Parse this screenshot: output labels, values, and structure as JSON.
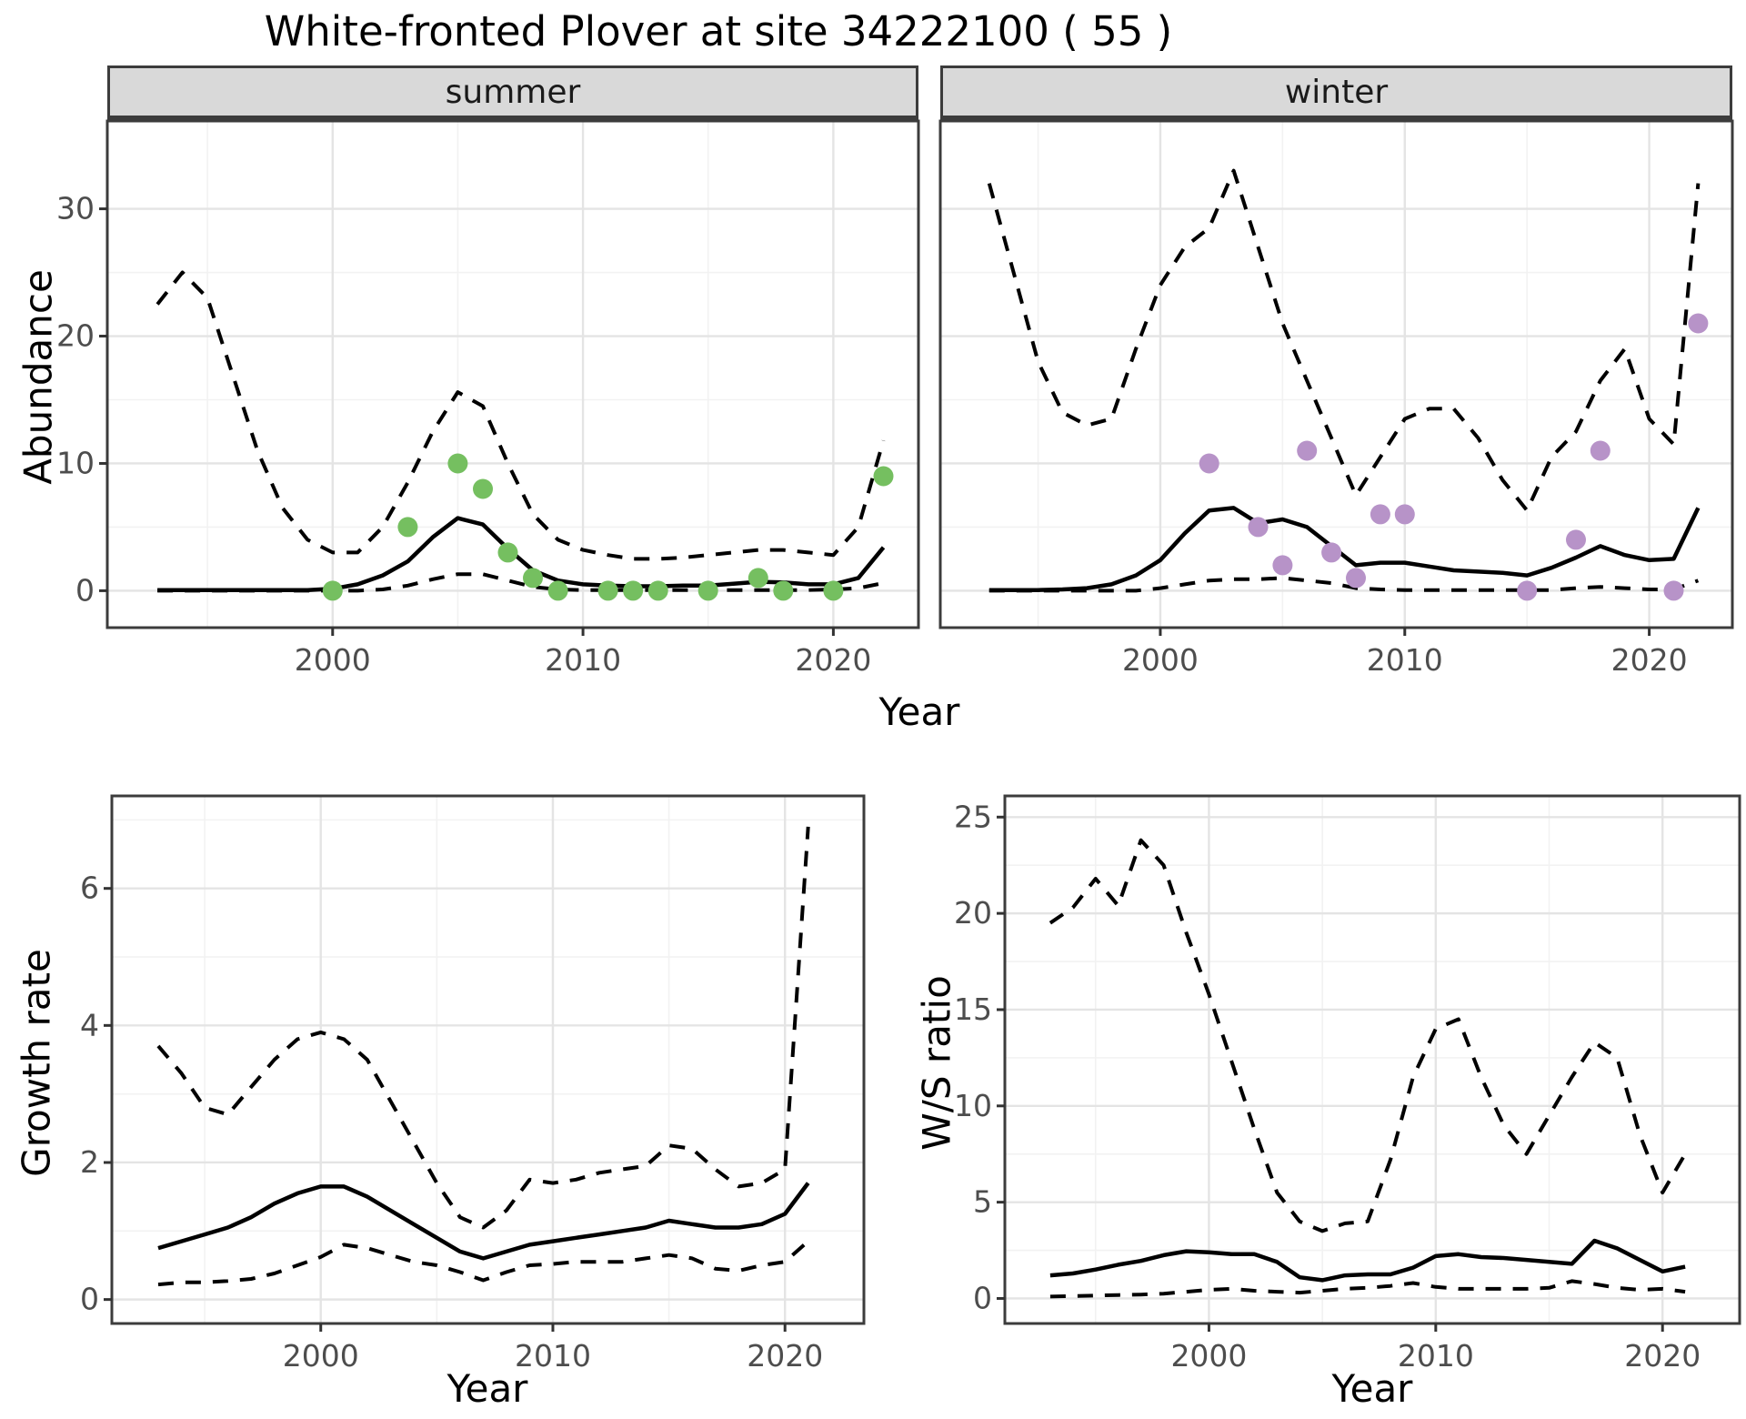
{
  "title": "White-fronted Plover at site 34222100 ( 55 )",
  "colors": {
    "summer_point": "#75bf60",
    "winter_point": "#b793c8",
    "line": "#000000",
    "strip_bg": "#d9d9d9",
    "panel_border": "#3c3c3c",
    "grid_major": "#e4e4e4",
    "grid_minor": "#f2f2f2",
    "axis_text": "#4d4d4d",
    "tick_mark": "#333333"
  },
  "labels": {
    "strip_summer": "summer",
    "strip_winter": "winter",
    "y_abundance": "Abundance",
    "y_growth": "Growth rate",
    "y_ws": "W/S ratio",
    "x_year_top": "Year",
    "x_year_bottom_left": "Year",
    "x_year_bottom_right": "Year"
  },
  "chart_data": [
    {
      "id": "summer",
      "type": "line",
      "facet": "summer",
      "title": "Abundance - summer facet",
      "xlabel": "Year",
      "ylabel": "Abundance",
      "xlim": [
        1991,
        2023.4
      ],
      "ylim": [
        -2.9,
        36.9
      ],
      "x_ticks": {
        "major": [
          2000,
          2010,
          2020
        ],
        "minor": [
          1995,
          2005,
          2015
        ],
        "labels": [
          "2000",
          "2010",
          "2020"
        ]
      },
      "y_ticks": {
        "major": [
          0,
          10,
          20,
          30
        ],
        "minor": [
          5,
          15,
          25
        ],
        "labels": [
          "0",
          "10",
          "20",
          "30"
        ]
      },
      "years": [
        1993,
        1994,
        1995,
        1996,
        1997,
        1998,
        1999,
        2000,
        2001,
        2002,
        2003,
        2004,
        2005,
        2006,
        2007,
        2008,
        2009,
        2010,
        2011,
        2012,
        2013,
        2014,
        2015,
        2016,
        2017,
        2018,
        2019,
        2020,
        2021,
        2022
      ],
      "series": [
        {
          "name": "median",
          "style": "solid",
          "values": [
            0.05,
            0.05,
            0.05,
            0.05,
            0.05,
            0.05,
            0.05,
            0.15,
            0.5,
            1.2,
            2.3,
            4.2,
            5.7,
            5.2,
            3.3,
            1.6,
            0.8,
            0.5,
            0.4,
            0.35,
            0.35,
            0.4,
            0.4,
            0.55,
            0.7,
            0.65,
            0.5,
            0.5,
            1.0,
            3.4
          ]
        },
        {
          "name": "upper_ci",
          "style": "dashed",
          "values": [
            22.5,
            25,
            23,
            17,
            11,
            6.5,
            4,
            3,
            3,
            5,
            8.5,
            12.5,
            15.6,
            14.5,
            10,
            6,
            4,
            3.2,
            2.8,
            2.5,
            2.5,
            2.6,
            2.8,
            3,
            3.2,
            3.2,
            3,
            2.8,
            5,
            11.8
          ]
        },
        {
          "name": "lower_ci",
          "style": "dashed",
          "values": [
            0,
            0,
            0,
            0,
            0,
            0,
            0,
            0,
            0,
            0.1,
            0.4,
            0.9,
            1.3,
            1.3,
            0.8,
            0.3,
            0.1,
            0.05,
            0.05,
            0.05,
            0.05,
            0.05,
            0.05,
            0.05,
            0.05,
            0.05,
            0.05,
            0.1,
            0.2,
            0.6
          ]
        }
      ],
      "observations": [
        [
          2000,
          0
        ],
        [
          2003,
          5
        ],
        [
          2005,
          10
        ],
        [
          2006,
          8
        ],
        [
          2007,
          3
        ],
        [
          2008,
          1
        ],
        [
          2009,
          0
        ],
        [
          2011,
          0
        ],
        [
          2012,
          0
        ],
        [
          2013,
          0
        ],
        [
          2015,
          0
        ],
        [
          2017,
          1
        ],
        [
          2018,
          0
        ],
        [
          2020,
          0
        ],
        [
          2022,
          9
        ]
      ],
      "point_color_key": "summer_point"
    },
    {
      "id": "winter",
      "type": "line",
      "facet": "winter",
      "title": "Abundance - winter facet",
      "xlabel": "Year",
      "ylabel": "Abundance",
      "xlim": [
        1991,
        2023.4
      ],
      "ylim": [
        -2.9,
        36.9
      ],
      "x_ticks": {
        "major": [
          2000,
          2010,
          2020
        ],
        "minor": [
          1995,
          2005,
          2015
        ],
        "labels": [
          "2000",
          "2010",
          "2020"
        ]
      },
      "y_ticks": {
        "major": [
          0,
          10,
          20,
          30
        ],
        "minor": [
          5,
          15,
          25
        ],
        "labels": []
      },
      "years": [
        1993,
        1994,
        1995,
        1996,
        1997,
        1998,
        1999,
        2000,
        2001,
        2002,
        2003,
        2004,
        2005,
        2006,
        2007,
        2008,
        2009,
        2010,
        2011,
        2012,
        2013,
        2014,
        2015,
        2016,
        2017,
        2018,
        2019,
        2020,
        2021,
        2022
      ],
      "series": [
        {
          "name": "median",
          "style": "solid",
          "values": [
            0.05,
            0.05,
            0.05,
            0.1,
            0.2,
            0.5,
            1.2,
            2.4,
            4.5,
            6.3,
            6.5,
            5.3,
            5.6,
            5.0,
            3.5,
            2.0,
            2.2,
            2.2,
            1.9,
            1.6,
            1.5,
            1.4,
            1.2,
            1.8,
            2.6,
            3.5,
            2.8,
            2.4,
            2.5,
            6.5
          ]
        },
        {
          "name": "upper_ci",
          "style": "dashed",
          "values": [
            32,
            25,
            18,
            14,
            13,
            13.5,
            19,
            24,
            27,
            28.5,
            33,
            27,
            21,
            16.5,
            12,
            7.5,
            10.5,
            13.5,
            14.3,
            14.3,
            12,
            8.7,
            6.3,
            10.5,
            12.5,
            16.5,
            19,
            13.5,
            11.5,
            32
          ]
        },
        {
          "name": "lower_ci",
          "style": "dashed",
          "values": [
            0,
            0,
            0,
            0,
            0,
            0,
            0,
            0.2,
            0.5,
            0.8,
            0.9,
            0.9,
            1.0,
            0.8,
            0.6,
            0.2,
            0.1,
            0.05,
            0.05,
            0.05,
            0.05,
            0.05,
            0.05,
            0.05,
            0.2,
            0.3,
            0.2,
            0.1,
            0.1,
            0.8
          ]
        }
      ],
      "observations": [
        [
          2002,
          10
        ],
        [
          2004,
          5
        ],
        [
          2005,
          2
        ],
        [
          2006,
          11
        ],
        [
          2007,
          3
        ],
        [
          2008,
          1
        ],
        [
          2009,
          6
        ],
        [
          2010,
          6
        ],
        [
          2015,
          0
        ],
        [
          2017,
          4
        ],
        [
          2018,
          11
        ],
        [
          2021,
          0
        ],
        [
          2022,
          21
        ]
      ],
      "point_color_key": "winter_point"
    },
    {
      "id": "growth",
      "type": "line",
      "title": "Growth rate",
      "xlabel": "Year",
      "ylabel": "Growth rate",
      "xlim": [
        1991,
        2023.4
      ],
      "ylim": [
        -0.35,
        7.35
      ],
      "x_ticks": {
        "major": [
          2000,
          2010,
          2020
        ],
        "minor": [
          1995,
          2005,
          2015
        ],
        "labels": [
          "2000",
          "2010",
          "2020"
        ]
      },
      "y_ticks": {
        "major": [
          0,
          2,
          4,
          6
        ],
        "minor": [
          1,
          3,
          5,
          7
        ],
        "labels": [
          "0",
          "2",
          "4",
          "6"
        ]
      },
      "years": [
        1993,
        1994,
        1995,
        1996,
        1997,
        1998,
        1999,
        2000,
        2001,
        2002,
        2003,
        2004,
        2005,
        2006,
        2007,
        2008,
        2009,
        2010,
        2011,
        2012,
        2013,
        2014,
        2015,
        2016,
        2017,
        2018,
        2019,
        2020,
        2021
      ],
      "series": [
        {
          "name": "median",
          "style": "solid",
          "values": [
            0.75,
            0.85,
            0.95,
            1.05,
            1.2,
            1.4,
            1.55,
            1.65,
            1.65,
            1.5,
            1.3,
            1.1,
            0.9,
            0.7,
            0.6,
            0.7,
            0.8,
            0.85,
            0.9,
            0.95,
            1.0,
            1.05,
            1.15,
            1.1,
            1.05,
            1.05,
            1.1,
            1.25,
            1.7
          ]
        },
        {
          "name": "upper_ci",
          "style": "dashed",
          "values": [
            3.7,
            3.3,
            2.8,
            2.7,
            3.1,
            3.5,
            3.8,
            3.9,
            3.8,
            3.5,
            2.9,
            2.3,
            1.7,
            1.2,
            1.05,
            1.3,
            1.75,
            1.7,
            1.75,
            1.85,
            1.9,
            1.95,
            2.25,
            2.2,
            1.9,
            1.65,
            1.7,
            1.9,
            6.9
          ]
        },
        {
          "name": "lower_ci",
          "style": "dashed",
          "values": [
            0.22,
            0.25,
            0.25,
            0.27,
            0.3,
            0.38,
            0.5,
            0.62,
            0.8,
            0.75,
            0.65,
            0.55,
            0.5,
            0.4,
            0.28,
            0.4,
            0.5,
            0.52,
            0.55,
            0.55,
            0.55,
            0.6,
            0.65,
            0.6,
            0.45,
            0.42,
            0.5,
            0.55,
            0.85
          ]
        }
      ],
      "observations": [],
      "point_color_key": null
    },
    {
      "id": "ws",
      "type": "line",
      "title": "W/S ratio",
      "xlabel": "Year",
      "ylabel": "W/S ratio",
      "xlim": [
        1991,
        2023.4
      ],
      "ylim": [
        -1.3,
        26.1
      ],
      "x_ticks": {
        "major": [
          2000,
          2010,
          2020
        ],
        "minor": [
          1995,
          2005,
          2015
        ],
        "labels": [
          "2000",
          "2010",
          "2020"
        ]
      },
      "y_ticks": {
        "major": [
          0,
          5,
          10,
          15,
          20,
          25
        ],
        "minor": [
          2.5,
          7.5,
          12.5,
          17.5,
          22.5
        ],
        "labels": [
          "0",
          "5",
          "10",
          "15",
          "20",
          "25"
        ]
      },
      "years": [
        1993,
        1994,
        1995,
        1996,
        1997,
        1998,
        1999,
        2000,
        2001,
        2002,
        2003,
        2004,
        2005,
        2006,
        2007,
        2008,
        2009,
        2010,
        2011,
        2012,
        2013,
        2014,
        2015,
        2016,
        2017,
        2018,
        2019,
        2020,
        2021
      ],
      "series": [
        {
          "name": "median",
          "style": "solid",
          "values": [
            1.2,
            1.3,
            1.5,
            1.75,
            1.95,
            2.25,
            2.45,
            2.4,
            2.3,
            2.3,
            1.9,
            1.1,
            0.95,
            1.2,
            1.25,
            1.25,
            1.6,
            2.2,
            2.3,
            2.15,
            2.1,
            2.0,
            1.9,
            1.8,
            3.0,
            2.6,
            2.0,
            1.4,
            1.65
          ]
        },
        {
          "name": "upper_ci",
          "style": "dashed",
          "values": [
            19.5,
            20.3,
            21.8,
            20.4,
            23.8,
            22.5,
            19.0,
            15.8,
            12.3,
            8.8,
            5.5,
            4.0,
            3.5,
            3.9,
            4.0,
            7.2,
            11.5,
            14.0,
            14.5,
            11.5,
            9.0,
            7.5,
            9.5,
            11.5,
            13.3,
            12.5,
            8.5,
            5.5,
            7.5
          ]
        },
        {
          "name": "lower_ci",
          "style": "dashed",
          "values": [
            0.1,
            0.12,
            0.15,
            0.18,
            0.2,
            0.25,
            0.35,
            0.45,
            0.5,
            0.4,
            0.35,
            0.3,
            0.4,
            0.5,
            0.55,
            0.65,
            0.8,
            0.6,
            0.5,
            0.5,
            0.5,
            0.5,
            0.55,
            0.9,
            0.75,
            0.55,
            0.45,
            0.5,
            0.35
          ]
        }
      ],
      "observations": [],
      "point_color_key": null
    }
  ]
}
